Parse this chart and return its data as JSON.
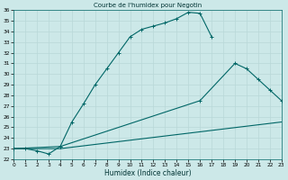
{
  "bg_color": "#cce8e8",
  "grid_color": "#b8d8d8",
  "line_color": "#006666",
  "xlim": [
    0,
    23
  ],
  "ylim": [
    22,
    36
  ],
  "xlabel": "Humidex (Indice chaleur)",
  "title": "Courbe de l'humidex pour Negotin",
  "curve1_x": [
    0,
    1,
    2,
    3,
    4,
    5,
    6,
    7,
    8,
    9,
    10,
    11,
    12,
    13,
    14,
    15,
    16,
    17
  ],
  "curve1_y": [
    23.0,
    23.0,
    22.8,
    22.5,
    23.2,
    25.5,
    27.2,
    29.0,
    30.5,
    32.0,
    33.5,
    34.2,
    34.5,
    34.8,
    35.2,
    35.8,
    35.7,
    33.5
  ],
  "curve2_x": [
    0,
    4,
    16,
    19,
    20,
    21,
    22,
    23
  ],
  "curve2_y": [
    23.0,
    23.2,
    27.5,
    31.0,
    30.5,
    29.5,
    28.5,
    27.5
  ],
  "curve3_x": [
    0,
    4,
    23
  ],
  "curve3_y": [
    23.0,
    23.0,
    25.5
  ],
  "title_fontsize": 5.0,
  "label_fontsize": 5.5,
  "tick_fontsize": 4.2
}
